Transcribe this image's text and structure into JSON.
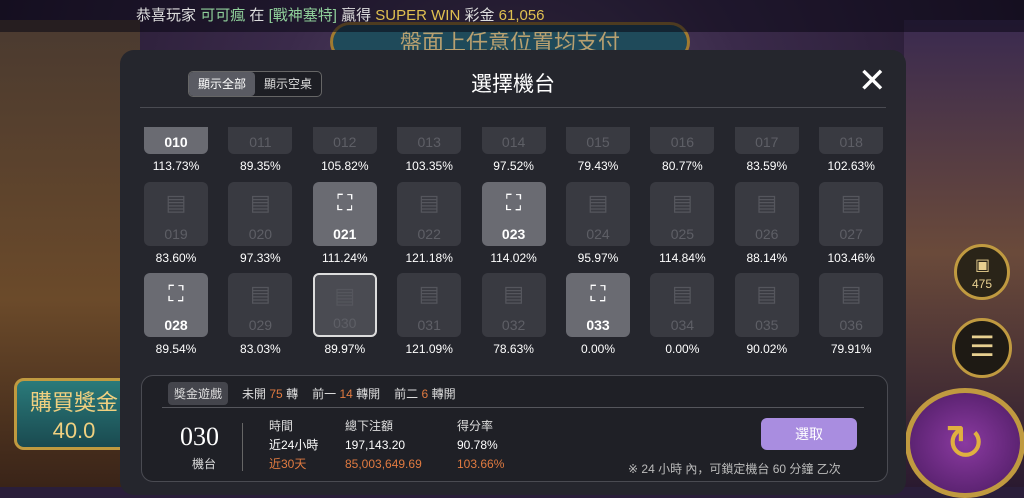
{
  "background": {
    "banner": "盤面上任意位置均支付",
    "buy_bonus": "購買獎金",
    "buy_price": "40.0",
    "badge_count": "475"
  },
  "ticker": {
    "prefix": "恭喜玩家",
    "player": "可可瘋",
    "in": "在",
    "game": "[戰神塞特]",
    "won": "贏得",
    "win_type": "SUPER WIN",
    "prize_label": "彩金",
    "amount": "61,056"
  },
  "modal": {
    "title": "選擇機台",
    "toggle": [
      {
        "label": "顯示全部",
        "active": true
      },
      {
        "label": "顯示空桌",
        "active": false
      }
    ],
    "machines": [
      {
        "id": "010",
        "rate": "113.73%",
        "state": "top"
      },
      {
        "id": "011",
        "rate": "89.35%",
        "state": "empty"
      },
      {
        "id": "012",
        "rate": "105.82%",
        "state": "empty"
      },
      {
        "id": "013",
        "rate": "103.35%",
        "state": "empty"
      },
      {
        "id": "014",
        "rate": "97.52%",
        "state": "empty"
      },
      {
        "id": "015",
        "rate": "79.43%",
        "state": "empty"
      },
      {
        "id": "016",
        "rate": "80.77%",
        "state": "empty"
      },
      {
        "id": "017",
        "rate": "83.59%",
        "state": "empty"
      },
      {
        "id": "018",
        "rate": "102.63%",
        "state": "empty"
      },
      {
        "id": "019",
        "rate": "83.60%",
        "state": "empty"
      },
      {
        "id": "020",
        "rate": "97.33%",
        "state": "empty"
      },
      {
        "id": "021",
        "rate": "111.24%",
        "state": "occupied"
      },
      {
        "id": "022",
        "rate": "121.18%",
        "state": "empty"
      },
      {
        "id": "023",
        "rate": "114.02%",
        "state": "occupied"
      },
      {
        "id": "024",
        "rate": "95.97%",
        "state": "empty"
      },
      {
        "id": "025",
        "rate": "114.84%",
        "state": "empty"
      },
      {
        "id": "026",
        "rate": "88.14%",
        "state": "empty"
      },
      {
        "id": "027",
        "rate": "103.46%",
        "state": "empty"
      },
      {
        "id": "028",
        "rate": "89.54%",
        "state": "occupied"
      },
      {
        "id": "029",
        "rate": "83.03%",
        "state": "empty"
      },
      {
        "id": "030",
        "rate": "89.97%",
        "state": "selected"
      },
      {
        "id": "031",
        "rate": "121.09%",
        "state": "empty"
      },
      {
        "id": "032",
        "rate": "78.63%",
        "state": "empty"
      },
      {
        "id": "033",
        "rate": "0.00%",
        "state": "occupied"
      },
      {
        "id": "034",
        "rate": "0.00%",
        "state": "empty"
      },
      {
        "id": "035",
        "rate": "90.02%",
        "state": "empty"
      },
      {
        "id": "036",
        "rate": "79.91%",
        "state": "empty"
      }
    ],
    "info": {
      "tab": "獎金遊戲",
      "stats": [
        {
          "pre": "未開",
          "num": "75",
          "post": "轉"
        },
        {
          "pre": "前一",
          "num": "14",
          "post": "轉開"
        },
        {
          "pre": "前二",
          "num": "6",
          "post": "轉開"
        }
      ],
      "machine_id": "030",
      "machine_label": "機台",
      "headers": [
        "時間",
        "總下注額",
        "得分率"
      ],
      "rows": [
        [
          "近24小時",
          "197,143.20",
          "90.78%"
        ],
        [
          "近30天",
          "85,003,649.69",
          "103.66%"
        ]
      ],
      "select_label": "選取",
      "note": "※ 24 小時 內，可鎖定機台 60 分鐘 乙次"
    }
  }
}
